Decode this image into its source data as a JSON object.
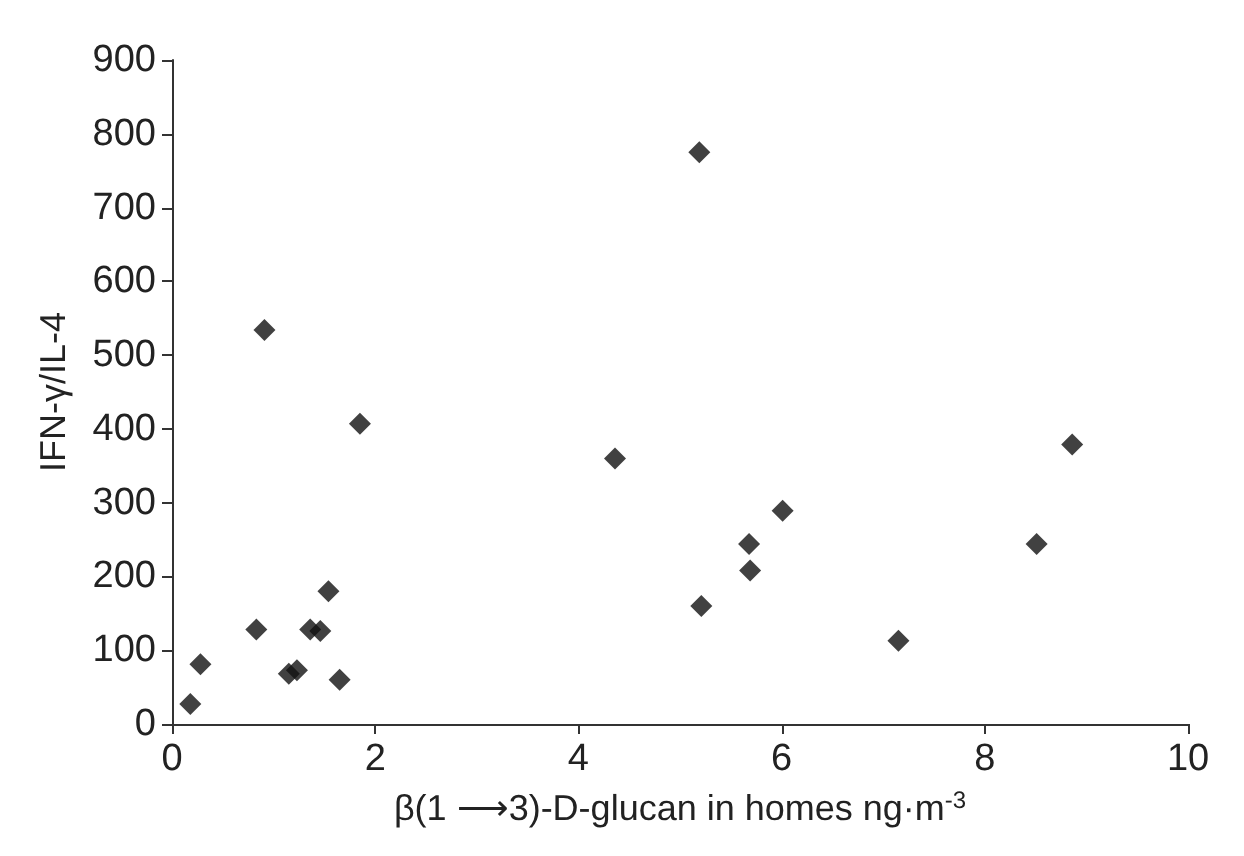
{
  "chart_data": {
    "type": "scatter",
    "xlabel": "β(1 ⟶3)-D-glucan in homes ng·m$^{-3}$",
    "ylabel": "IFN-γ/IL-4",
    "x": [
      0.18,
      0.28,
      0.83,
      0.91,
      1.15,
      1.23,
      1.36,
      1.46,
      1.54,
      1.65,
      1.85,
      4.36,
      5.19,
      5.21,
      5.68,
      5.69,
      6.01,
      7.15,
      8.51,
      8.86
    ],
    "values": [
      27,
      81,
      128,
      534,
      68,
      73,
      128,
      126,
      180,
      60,
      407,
      360,
      775,
      160,
      244,
      208,
      289,
      113,
      244,
      379
    ],
    "color": "#111111",
    "marker": "diamond",
    "xlim": [
      0,
      10
    ],
    "xticks": [
      0,
      2,
      4,
      6,
      8,
      10
    ],
    "ylim": [
      0,
      900
    ],
    "yticks": [
      0,
      100,
      200,
      300,
      400,
      500,
      600,
      700,
      800,
      900
    ],
    "grid": false
  }
}
